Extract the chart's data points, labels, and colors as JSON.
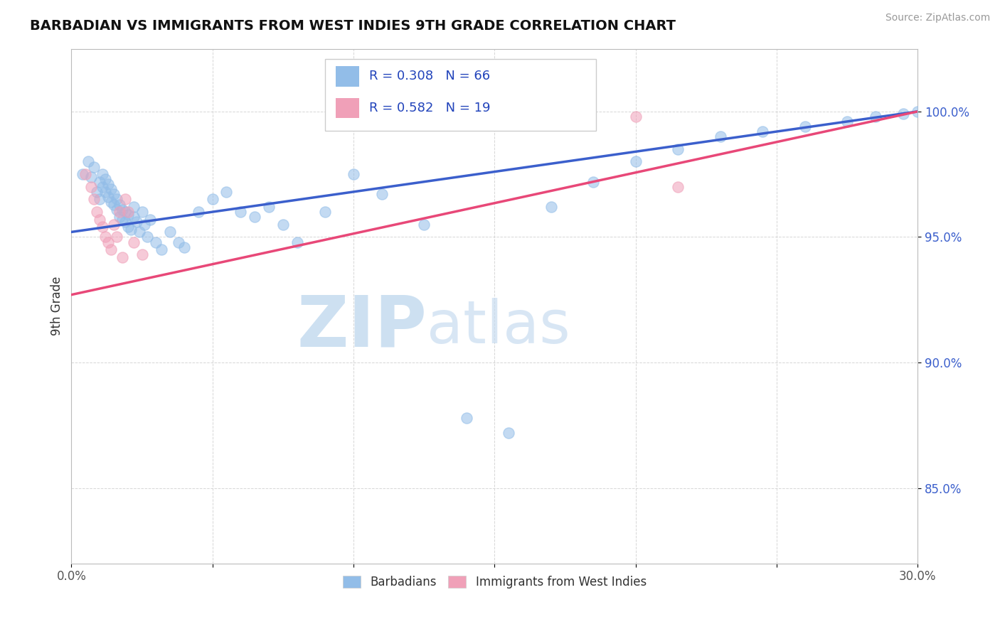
{
  "title": "BARBADIAN VS IMMIGRANTS FROM WEST INDIES 9TH GRADE CORRELATION CHART",
  "source": "Source: ZipAtlas.com",
  "ylabel": "9th Grade",
  "xlim": [
    0.0,
    0.3
  ],
  "ylim": [
    0.82,
    1.025
  ],
  "x_ticks": [
    0.0,
    0.05,
    0.1,
    0.15,
    0.2,
    0.25,
    0.3
  ],
  "x_tick_labels": [
    "0.0%",
    "",
    "",
    "",
    "",
    "",
    "30.0%"
  ],
  "y_ticks": [
    0.85,
    0.9,
    0.95,
    1.0
  ],
  "y_tick_labels": [
    "85.0%",
    "90.0%",
    "95.0%",
    "100.0%"
  ],
  "blue_color": "#92BDE8",
  "pink_color": "#F0A0B8",
  "blue_line_color": "#3B5FCC",
  "pink_line_color": "#E84878",
  "R_blue": 0.308,
  "N_blue": 66,
  "R_pink": 0.582,
  "N_pink": 19,
  "blue_scatter_x": [
    0.004,
    0.006,
    0.007,
    0.008,
    0.009,
    0.01,
    0.01,
    0.011,
    0.011,
    0.012,
    0.012,
    0.013,
    0.013,
    0.014,
    0.014,
    0.015,
    0.015,
    0.016,
    0.016,
    0.017,
    0.017,
    0.018,
    0.018,
    0.019,
    0.019,
    0.02,
    0.02,
    0.021,
    0.022,
    0.022,
    0.023,
    0.024,
    0.025,
    0.026,
    0.027,
    0.028,
    0.03,
    0.032,
    0.035,
    0.038,
    0.04,
    0.045,
    0.05,
    0.055,
    0.06,
    0.065,
    0.07,
    0.075,
    0.08,
    0.09,
    0.1,
    0.11,
    0.125,
    0.14,
    0.155,
    0.17,
    0.185,
    0.2,
    0.215,
    0.23,
    0.245,
    0.26,
    0.275,
    0.285,
    0.295,
    0.3
  ],
  "blue_scatter_y": [
    0.975,
    0.98,
    0.974,
    0.978,
    0.968,
    0.972,
    0.965,
    0.97,
    0.975,
    0.968,
    0.973,
    0.966,
    0.971,
    0.964,
    0.969,
    0.963,
    0.967,
    0.961,
    0.965,
    0.958,
    0.963,
    0.957,
    0.961,
    0.956,
    0.96,
    0.954,
    0.959,
    0.953,
    0.958,
    0.962,
    0.956,
    0.952,
    0.96,
    0.955,
    0.95,
    0.957,
    0.948,
    0.945,
    0.952,
    0.948,
    0.946,
    0.96,
    0.965,
    0.968,
    0.96,
    0.958,
    0.962,
    0.955,
    0.948,
    0.96,
    0.975,
    0.967,
    0.955,
    0.878,
    0.872,
    0.962,
    0.972,
    0.98,
    0.985,
    0.99,
    0.992,
    0.994,
    0.996,
    0.998,
    0.999,
    1.0
  ],
  "pink_scatter_x": [
    0.005,
    0.007,
    0.008,
    0.009,
    0.01,
    0.011,
    0.012,
    0.013,
    0.014,
    0.015,
    0.016,
    0.017,
    0.018,
    0.019,
    0.02,
    0.022,
    0.025,
    0.2,
    0.215
  ],
  "pink_scatter_y": [
    0.975,
    0.97,
    0.965,
    0.96,
    0.957,
    0.954,
    0.95,
    0.948,
    0.945,
    0.955,
    0.95,
    0.96,
    0.942,
    0.965,
    0.96,
    0.948,
    0.943,
    0.998,
    0.97
  ],
  "blue_trend_x": [
    0.0,
    0.3
  ],
  "blue_trend_y": [
    0.952,
    1.0
  ],
  "pink_trend_x": [
    0.0,
    0.3
  ],
  "pink_trend_y": [
    0.927,
    1.0
  ],
  "watermark_zip": "ZIP",
  "watermark_atlas": "atlas",
  "watermark_color_zip": "#B8D4EC",
  "watermark_color_atlas": "#C8DCF0",
  "background_color": "#FFFFFF",
  "grid_color": "#CCCCCC",
  "legend_label_color": "#2244BB",
  "text_color_blue": "#3B5FCC"
}
